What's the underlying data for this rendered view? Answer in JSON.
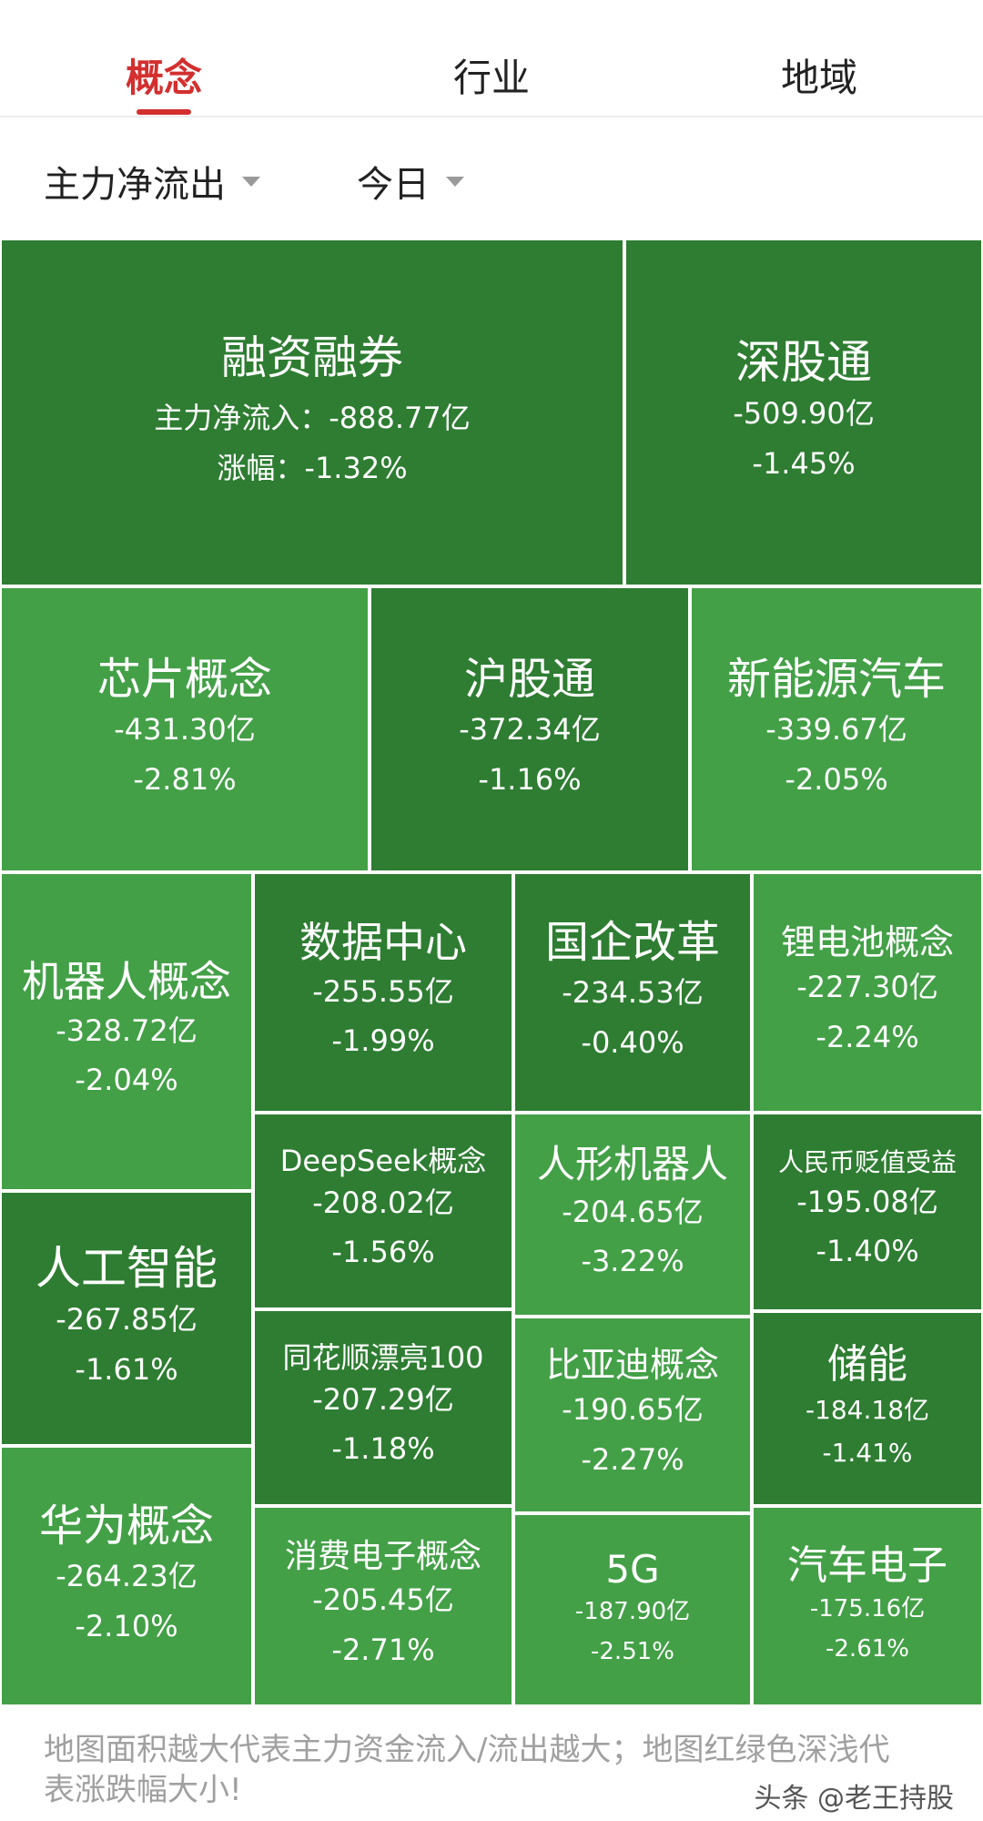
{
  "tabs": [
    {
      "label": "概念",
      "active": true
    },
    {
      "label": "行业",
      "active": false
    },
    {
      "label": "地域",
      "active": false
    }
  ],
  "filters": {
    "metric": "主力净流出",
    "period": "今日"
  },
  "treemap": [
    {
      "name": "融资融券",
      "value_label": "主力净流入：",
      "value": "-888.77亿",
      "pct_label": "涨幅：",
      "pct": "-1.32%",
      "shade": "dark"
    },
    {
      "name": "深股通",
      "value": "-509.90亿",
      "pct": "-1.45%",
      "shade": "dark"
    },
    {
      "name": "芯片概念",
      "value": "-431.30亿",
      "pct": "-2.81%",
      "shade": "light"
    },
    {
      "name": "沪股通",
      "value": "-372.34亿",
      "pct": "-1.16%",
      "shade": "dark"
    },
    {
      "name": "新能源汽车",
      "value": "-339.67亿",
      "pct": "-2.05%",
      "shade": "light"
    },
    {
      "name": "机器人概念",
      "value": "-328.72亿",
      "pct": "-2.04%",
      "shade": "light"
    },
    {
      "name": "数据中心",
      "value": "-255.55亿",
      "pct": "-1.99%",
      "shade": "dark"
    },
    {
      "name": "国企改革",
      "value": "-234.53亿",
      "pct": "-0.40%",
      "shade": "dark"
    },
    {
      "name": "锂电池概念",
      "value": "-227.30亿",
      "pct": "-2.24%",
      "shade": "light"
    },
    {
      "name": "人工智能",
      "value": "-267.85亿",
      "pct": "-1.61%",
      "shade": "dark"
    },
    {
      "name": "DeepSeek概念",
      "value": "-208.02亿",
      "pct": "-1.56%",
      "shade": "dark"
    },
    {
      "name": "人形机器人",
      "value": "-204.65亿",
      "pct": "-3.22%",
      "shade": "light"
    },
    {
      "name": "人民币贬值受益",
      "value": "-195.08亿",
      "pct": "-1.40%",
      "shade": "dark"
    },
    {
      "name": "同花顺漂亮100",
      "value": "-207.29亿",
      "pct": "-1.18%",
      "shade": "dark"
    },
    {
      "name": "比亚迪概念",
      "value": "-190.65亿",
      "pct": "-2.27%",
      "shade": "light"
    },
    {
      "name": "储能",
      "value": "-184.18亿",
      "pct": "-1.41%",
      "shade": "dark"
    },
    {
      "name": "华为概念",
      "value": "-264.23亿",
      "pct": "-2.10%",
      "shade": "light"
    },
    {
      "name": "消费电子概念",
      "value": "-205.45亿",
      "pct": "-2.71%",
      "shade": "light"
    },
    {
      "name": "5G",
      "value": "-187.90亿",
      "pct": "-2.51%",
      "shade": "light"
    },
    {
      "name": "汽车电子",
      "value": "-175.16亿",
      "pct": "-2.61%",
      "shade": "light"
    }
  ],
  "footer": "地图面积越大代表主力资金流入/流出越大；地图红绿色深浅代表涨跌幅大小!",
  "watermark": "头条 @老王持股",
  "colors": {
    "active_tab": "#d32f2f",
    "tile_dark": "#2e7d32",
    "tile_light": "#43a047"
  }
}
